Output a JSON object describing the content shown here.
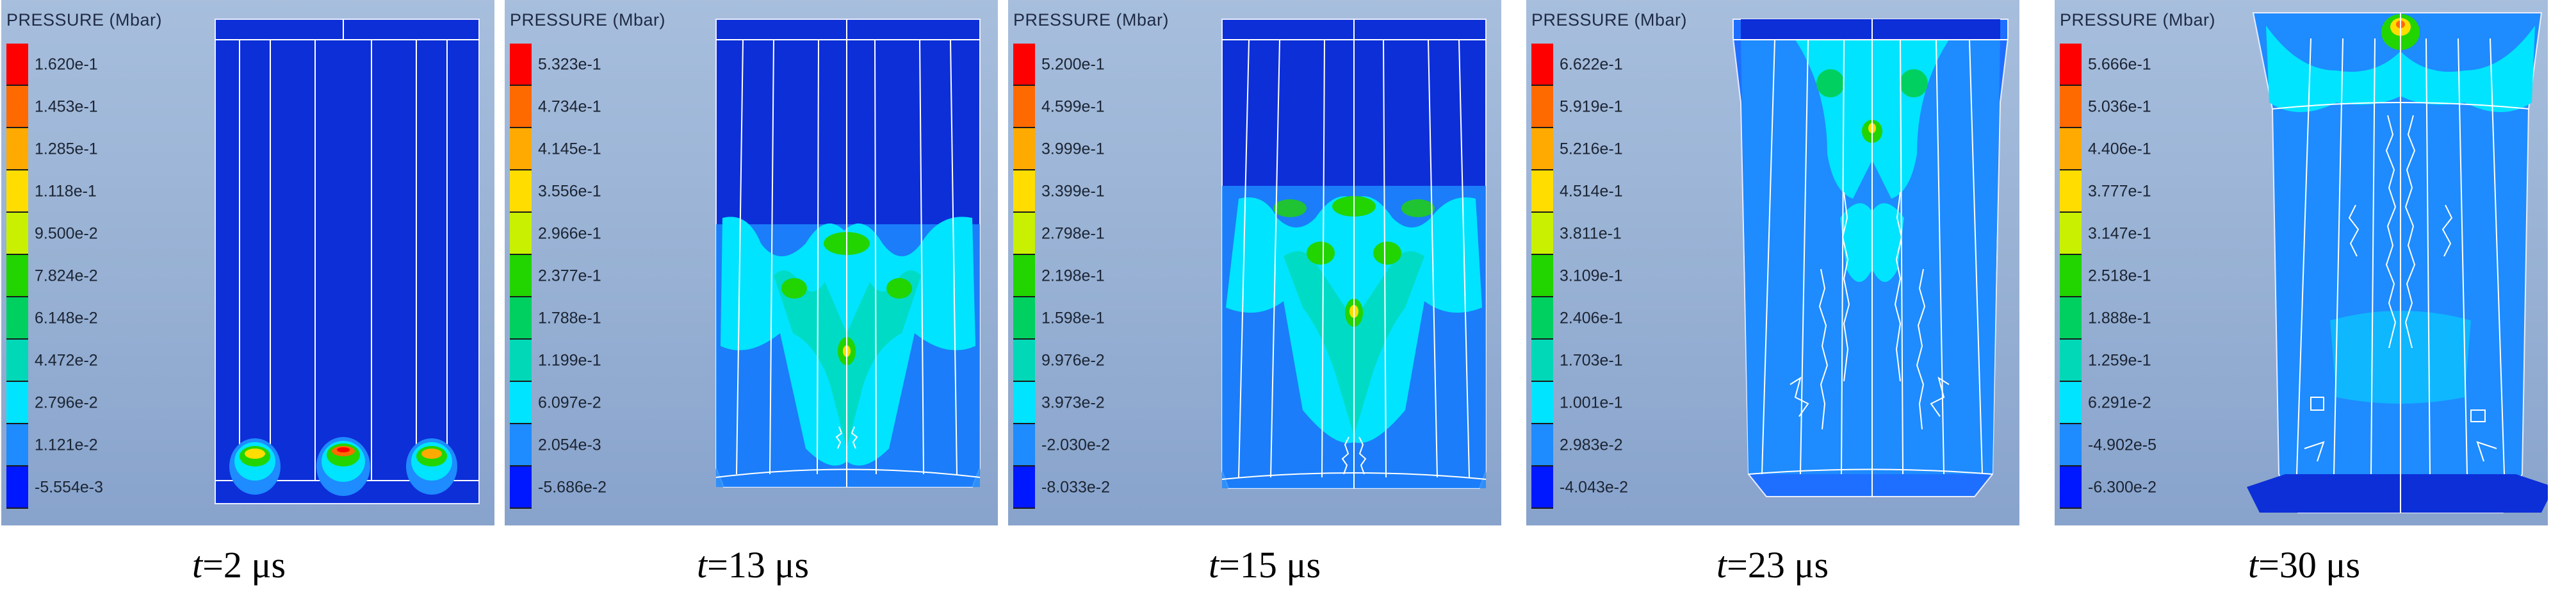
{
  "legend_title": "PRESSURE (Mbar)",
  "colors": [
    "#ff0000",
    "#ff6a00",
    "#ffaa00",
    "#ffdd00",
    "#c8f000",
    "#22d400",
    "#00d060",
    "#00d8b8",
    "#00e4ff",
    "#1e8bff",
    "#0018ff"
  ],
  "panels": [
    {
      "ticks": [
        "1.620e-1",
        "1.453e-1",
        "1.285e-1",
        "1.118e-1",
        "9.500e-2",
        "7.824e-2",
        "6.148e-2",
        "4.472e-2",
        "2.796e-2",
        "1.121e-2",
        "-5.554e-3"
      ],
      "caption_time": "2",
      "caption_unit": " μs"
    },
    {
      "ticks": [
        "5.323e-1",
        "4.734e-1",
        "4.145e-1",
        "3.556e-1",
        "2.966e-1",
        "2.377e-1",
        "1.788e-1",
        "1.199e-1",
        "6.097e-2",
        "2.054e-3",
        "-5.686e-2"
      ],
      "caption_time": "13",
      "caption_unit": " μs"
    },
    {
      "ticks": [
        "5.200e-1",
        "4.599e-1",
        "3.999e-1",
        "3.399e-1",
        "2.798e-1",
        "2.198e-1",
        "1.598e-1",
        "9.976e-2",
        "3.973e-2",
        "-2.030e-2",
        "-8.033e-2"
      ],
      "caption_time": "15",
      "caption_unit": " μs"
    },
    {
      "ticks": [
        "6.622e-1",
        "5.919e-1",
        "5.216e-1",
        "4.514e-1",
        "3.811e-1",
        "3.109e-1",
        "2.406e-1",
        "1.703e-1",
        "1.001e-1",
        "2.983e-2",
        "-4.043e-2"
      ],
      "caption_time": "23",
      "caption_unit": " μs"
    },
    {
      "ticks": [
        "5.666e-1",
        "5.036e-1",
        "4.406e-1",
        "3.777e-1",
        "3.147e-1",
        "2.518e-1",
        "1.888e-1",
        "1.259e-1",
        "6.291e-2",
        "-4.902e-5",
        "-6.300e-2"
      ],
      "caption_time": "30",
      "caption_unit": " μs"
    }
  ]
}
